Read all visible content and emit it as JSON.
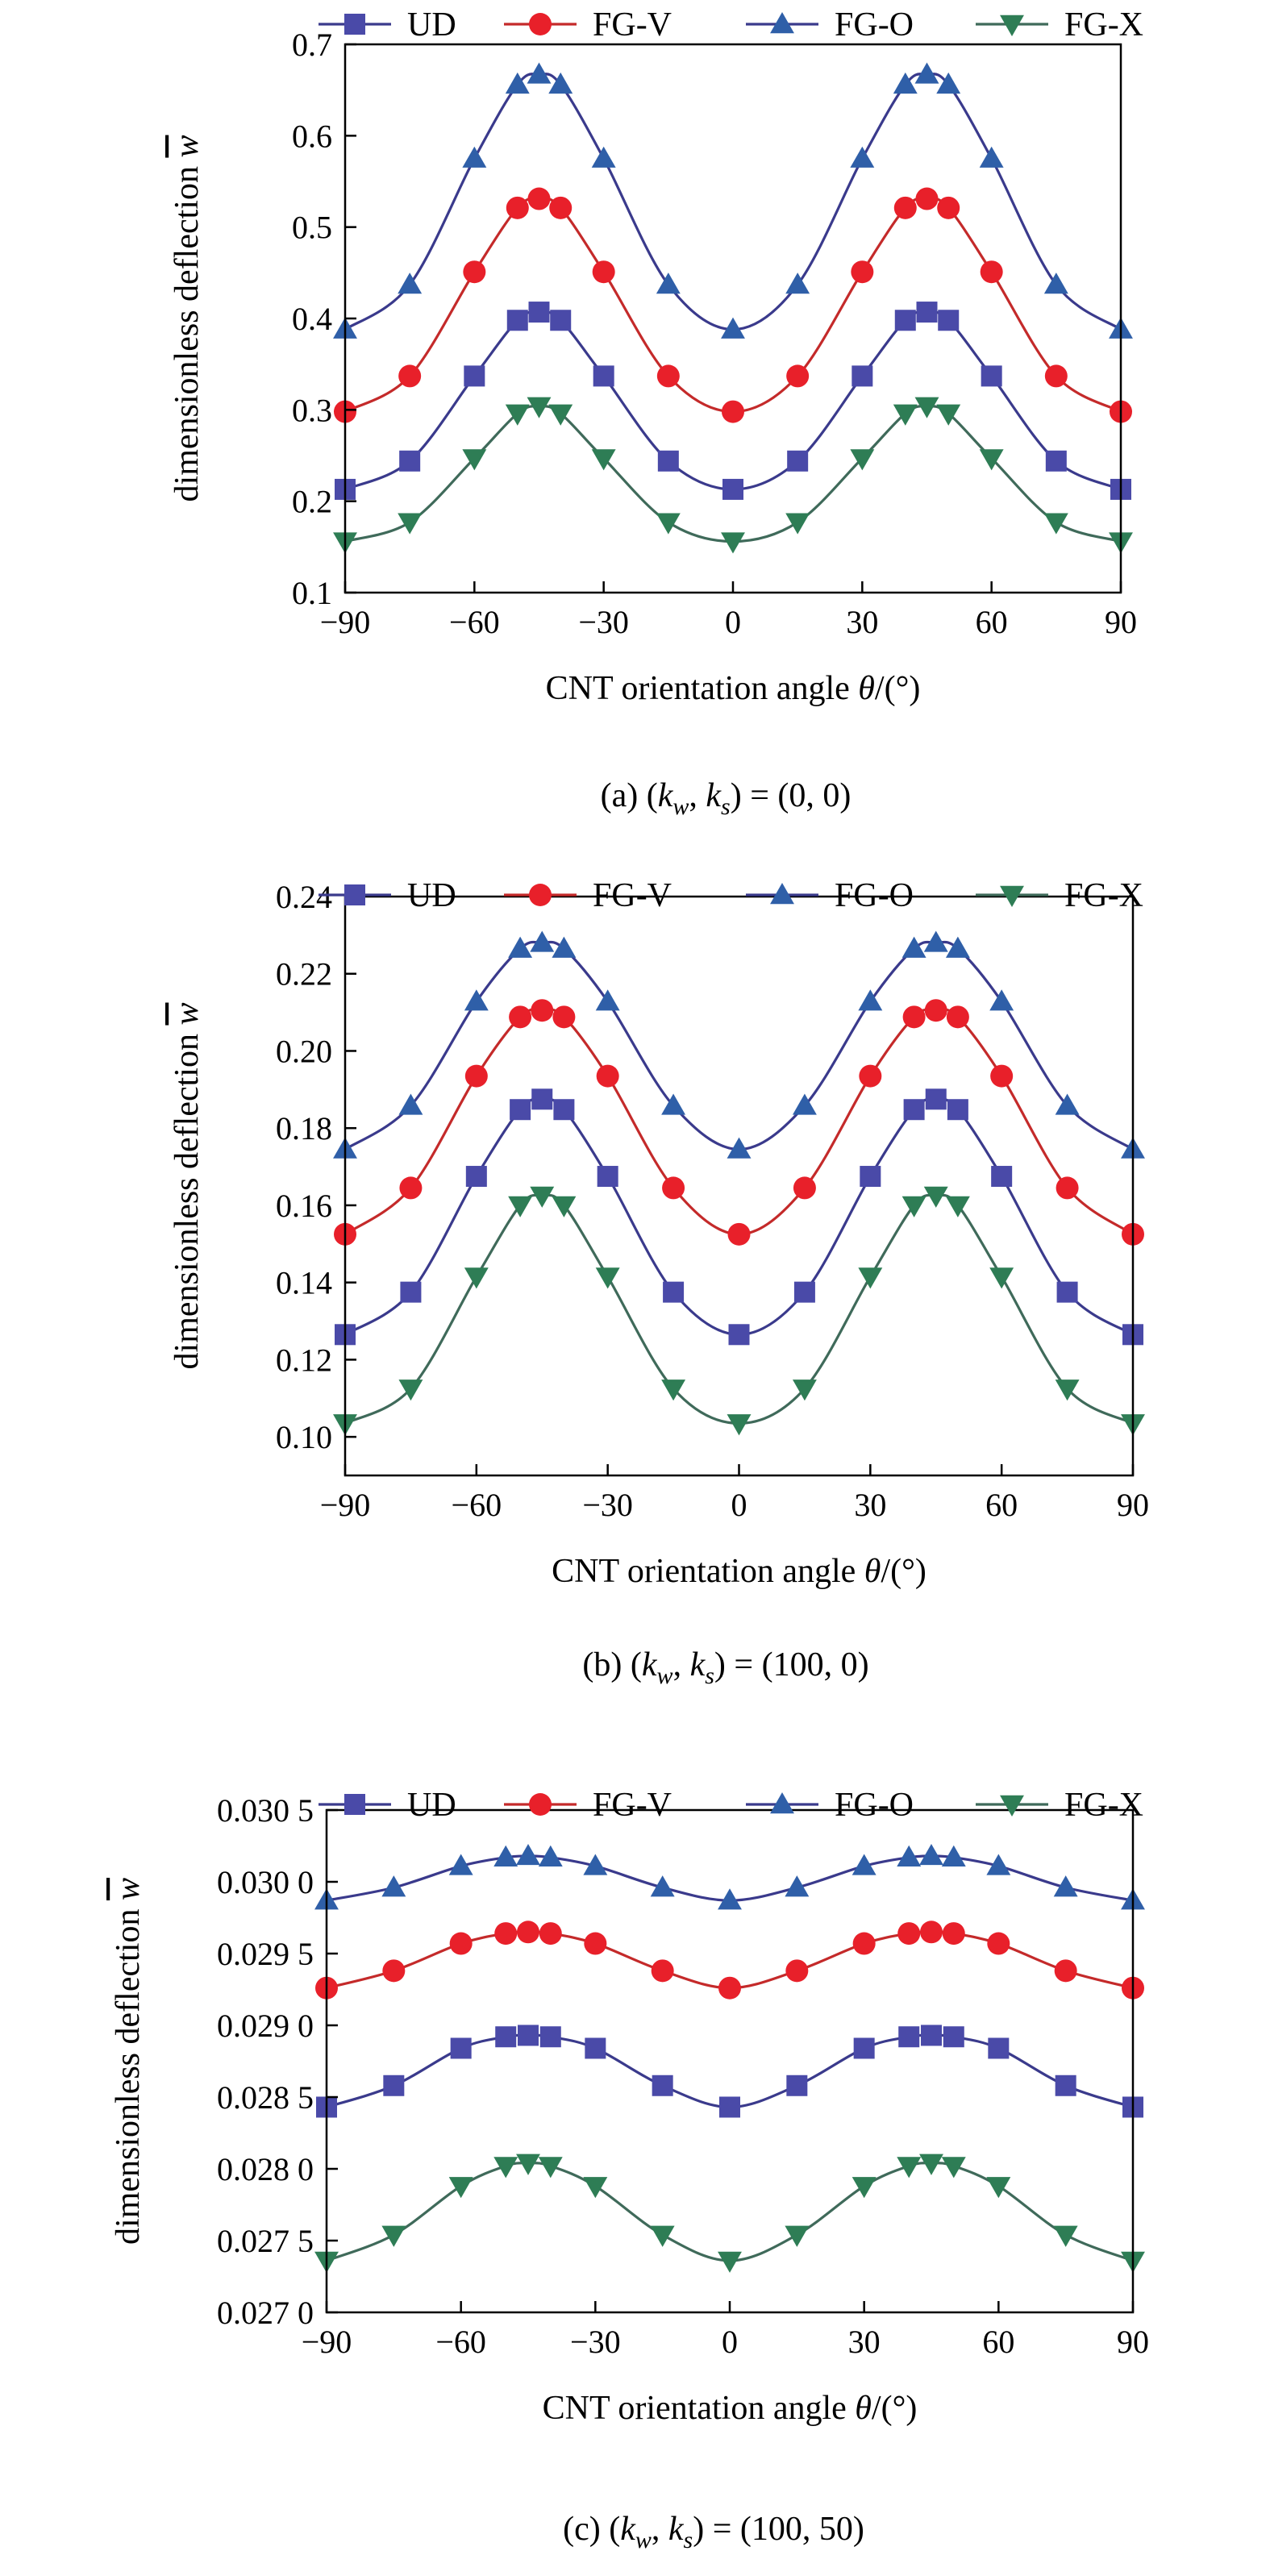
{
  "chart_data": [
    {
      "type": "line",
      "caption": "(a) (k_w, k_s) = (0, 0)",
      "caption_parts": {
        "prefix": "(a) (",
        "kw": "k",
        "kw_sub": "w",
        "sep": ", ",
        "ks": "k",
        "ks_sub": "s",
        "suffix": ") = (0, 0)"
      },
      "xlabel": "CNT orientation angle θ/(°)",
      "xlabel_parts": {
        "pre": "CNT orientation angle ",
        "theta": "θ",
        "post": "/(°)"
      },
      "ylabel": "dimensionless deflection w̄",
      "ylabel_parts": {
        "text": "dimensionless deflection ",
        "sym": "w"
      },
      "xlim": [
        -90,
        90
      ],
      "ylim": [
        0.1,
        0.7
      ],
      "xticks": [
        -90,
        -60,
        -30,
        0,
        30,
        60,
        90
      ],
      "xtick_labels": [
        "−90",
        "−60",
        "−30",
        "0",
        "30",
        "60",
        "90"
      ],
      "yticks": [
        0.1,
        0.2,
        0.3,
        0.4,
        0.5,
        0.6,
        0.7
      ],
      "ytick_labels": [
        "0.1",
        "0.2",
        "0.3",
        "0.4",
        "0.5",
        "0.6",
        "0.7"
      ],
      "x": [
        -90,
        -75,
        -60,
        -50,
        -45,
        -40,
        -30,
        -15,
        0,
        15,
        30,
        40,
        45,
        50,
        60,
        75,
        90
      ],
      "series": [
        {
          "name": "UD",
          "marker": "square",
          "color": "#4a4aa8",
          "line_color": "#3a3a8c",
          "values": [
            0.213,
            0.244,
            0.337,
            0.398,
            0.407,
            0.398,
            0.337,
            0.244,
            0.213,
            0.244,
            0.337,
            0.398,
            0.407,
            0.398,
            0.337,
            0.244,
            0.213
          ]
        },
        {
          "name": "FG-V",
          "marker": "circle",
          "color": "#e8202a",
          "line_color": "#c42a2a",
          "values": [
            0.298,
            0.337,
            0.451,
            0.521,
            0.531,
            0.521,
            0.451,
            0.337,
            0.298,
            0.337,
            0.451,
            0.521,
            0.531,
            0.521,
            0.451,
            0.337,
            0.298
          ]
        },
        {
          "name": "FG-O",
          "marker": "triangle-up",
          "color": "#2f5fa8",
          "line_color": "#3a3a8c",
          "values": [
            0.388,
            0.437,
            0.575,
            0.656,
            0.667,
            0.656,
            0.575,
            0.437,
            0.388,
            0.437,
            0.575,
            0.656,
            0.667,
            0.656,
            0.575,
            0.437,
            0.388
          ]
        },
        {
          "name": "FG-X",
          "marker": "triangle-down",
          "color": "#2e7d55",
          "line_color": "#3f6a5a",
          "values": [
            0.156,
            0.177,
            0.247,
            0.296,
            0.304,
            0.296,
            0.247,
            0.177,
            0.156,
            0.177,
            0.247,
            0.296,
            0.304,
            0.296,
            0.247,
            0.177,
            0.156
          ]
        }
      ]
    },
    {
      "type": "line",
      "caption": "(b) (k_w, k_s) = (100, 0)",
      "caption_parts": {
        "prefix": "(b) (",
        "kw": "k",
        "kw_sub": "w",
        "sep": ", ",
        "ks": "k",
        "ks_sub": "s",
        "suffix": ") = (100, 0)"
      },
      "xlabel": "CNT orientation angle θ/(°)",
      "xlabel_parts": {
        "pre": "CNT orientation angle ",
        "theta": "θ",
        "post": "/(°)"
      },
      "ylabel": "dimensionless deflection w̄",
      "ylabel_parts": {
        "text": "dimensionless deflection ",
        "sym": "w"
      },
      "xlim": [
        -90,
        90
      ],
      "ylim": [
        0.09,
        0.24
      ],
      "xticks": [
        -90,
        -60,
        -30,
        0,
        30,
        60,
        90
      ],
      "xtick_labels": [
        "−90",
        "−60",
        "−30",
        "0",
        "30",
        "60",
        "90"
      ],
      "yticks": [
        0.1,
        0.12,
        0.14,
        0.16,
        0.18,
        0.2,
        0.22,
        0.24
      ],
      "ytick_labels": [
        "0.10",
        "0.12",
        "0.14",
        "0.16",
        "0.18",
        "0.20",
        "0.22",
        "0.24"
      ],
      "x": [
        -90,
        -75,
        -60,
        -50,
        -45,
        -40,
        -30,
        -15,
        0,
        15,
        30,
        40,
        45,
        50,
        60,
        75,
        90
      ],
      "series": [
        {
          "name": "UD",
          "marker": "square",
          "color": "#4a4aa8",
          "line_color": "#3a3a8c",
          "values": [
            0.1265,
            0.1375,
            0.1675,
            0.1848,
            0.1875,
            0.1848,
            0.1675,
            0.1375,
            0.1265,
            0.1375,
            0.1675,
            0.1848,
            0.1875,
            0.1848,
            0.1675,
            0.1375,
            0.1265
          ]
        },
        {
          "name": "FG-V",
          "marker": "circle",
          "color": "#e8202a",
          "line_color": "#c42a2a",
          "values": [
            0.1525,
            0.1645,
            0.1935,
            0.2088,
            0.2105,
            0.2088,
            0.1935,
            0.1645,
            0.1525,
            0.1645,
            0.1935,
            0.2088,
            0.2105,
            0.2088,
            0.1935,
            0.1645,
            0.1525
          ]
        },
        {
          "name": "FG-O",
          "marker": "triangle-up",
          "color": "#2f5fa8",
          "line_color": "#3a3a8c",
          "values": [
            0.1745,
            0.1858,
            0.2128,
            0.2265,
            0.228,
            0.2265,
            0.2128,
            0.1858,
            0.1745,
            0.1858,
            0.2128,
            0.2265,
            0.228,
            0.2265,
            0.2128,
            0.1858,
            0.1745
          ]
        },
        {
          "name": "FG-X",
          "marker": "triangle-down",
          "color": "#2e7d55",
          "line_color": "#3f6a5a",
          "values": [
            0.1035,
            0.1125,
            0.1415,
            0.16,
            0.1625,
            0.16,
            0.1415,
            0.1125,
            0.1035,
            0.1125,
            0.1415,
            0.16,
            0.1625,
            0.16,
            0.1415,
            0.1125,
            0.1035
          ]
        }
      ]
    },
    {
      "type": "line",
      "caption": "(c) (k_w, k_s) = (100, 50)",
      "caption_parts": {
        "prefix": "(c) (",
        "kw": "k",
        "kw_sub": "w",
        "sep": ", ",
        "ks": "k",
        "ks_sub": "s",
        "suffix": ") = (100, 50)"
      },
      "xlabel": "CNT orientation angle θ/(°)",
      "xlabel_parts": {
        "pre": "CNT orientation angle ",
        "theta": "θ",
        "post": "/(°)"
      },
      "ylabel": "dimensionless deflection w̄",
      "ylabel_parts": {
        "text": "dimensionless deflection ",
        "sym": "w"
      },
      "xlim": [
        -90,
        90
      ],
      "ylim": [
        0.027,
        0.0305
      ],
      "xticks": [
        -90,
        -60,
        -30,
        0,
        30,
        60,
        90
      ],
      "xtick_labels": [
        "−90",
        "−60",
        "−30",
        "0",
        "30",
        "60",
        "90"
      ],
      "yticks": [
        0.027,
        0.0275,
        0.028,
        0.0285,
        0.029,
        0.0295,
        0.03,
        0.0305
      ],
      "ytick_labels": [
        "0.027 0",
        "0.027 5",
        "0.028 0",
        "0.028 5",
        "0.029 0",
        "0.029 5",
        "0.030 0",
        "0.030 5"
      ],
      "x": [
        -90,
        -75,
        -60,
        -50,
        -45,
        -40,
        -30,
        -15,
        0,
        15,
        30,
        40,
        45,
        50,
        60,
        75,
        90
      ],
      "series": [
        {
          "name": "UD",
          "marker": "square",
          "color": "#4a4aa8",
          "line_color": "#3a3a8c",
          "values": [
            0.02843,
            0.02858,
            0.02884,
            0.02892,
            0.02893,
            0.02892,
            0.02884,
            0.02858,
            0.02843,
            0.02858,
            0.02884,
            0.02892,
            0.02893,
            0.02892,
            0.02884,
            0.02858,
            0.02843
          ]
        },
        {
          "name": "FG-V",
          "marker": "circle",
          "color": "#e8202a",
          "line_color": "#c42a2a",
          "values": [
            0.02926,
            0.02938,
            0.02957,
            0.02964,
            0.02965,
            0.02964,
            0.02957,
            0.02938,
            0.02926,
            0.02938,
            0.02957,
            0.02964,
            0.02965,
            0.02964,
            0.02957,
            0.02938,
            0.02926
          ]
        },
        {
          "name": "FG-O",
          "marker": "triangle-up",
          "color": "#2f5fa8",
          "line_color": "#3a3a8c",
          "values": [
            0.02987,
            0.02996,
            0.03011,
            0.03017,
            0.03018,
            0.03017,
            0.03011,
            0.02996,
            0.02987,
            0.02996,
            0.03011,
            0.03017,
            0.03018,
            0.03017,
            0.03011,
            0.02996,
            0.02987
          ]
        },
        {
          "name": "FG-X",
          "marker": "triangle-down",
          "color": "#2e7d55",
          "line_color": "#3f6a5a",
          "values": [
            0.02736,
            0.02754,
            0.02788,
            0.02802,
            0.02804,
            0.02802,
            0.02788,
            0.02754,
            0.02736,
            0.02754,
            0.02788,
            0.02802,
            0.02804,
            0.02802,
            0.02788,
            0.02754,
            0.02736
          ]
        }
      ]
    }
  ]
}
